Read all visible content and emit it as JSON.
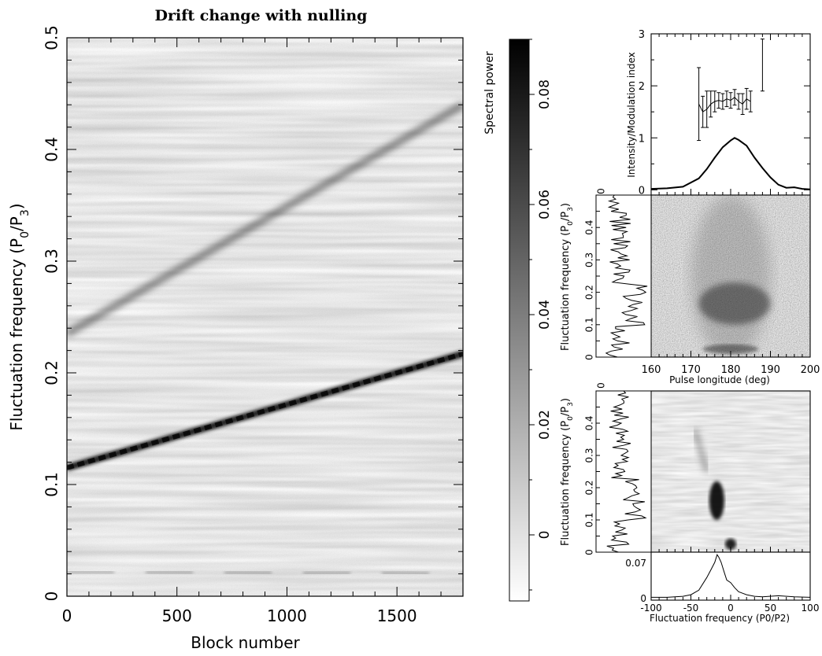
{
  "chart_data": [
    {
      "type": "heatmap",
      "title": "Drift change with nulling",
      "xlabel": "Block number",
      "ylabel": "Fluctuation frequency (P0/P3)",
      "xlim": [
        0,
        1800
      ],
      "ylim": [
        0,
        0.5
      ],
      "xticks": [
        0,
        500,
        1000,
        1500
      ],
      "yticks": [
        0,
        0.1,
        0.2,
        0.3,
        0.4,
        0.5
      ],
      "features": [
        {
          "name": "primary drift track",
          "x": [
            0,
            1800
          ],
          "y": [
            0.115,
            0.217
          ]
        },
        {
          "name": "second harmonic track",
          "x": [
            0,
            1800
          ],
          "y": [
            0.235,
            0.44
          ]
        },
        {
          "name": "low-frequency feature",
          "x": [
            0,
            1800
          ],
          "y": [
            0.022,
            0.02
          ]
        }
      ],
      "colorbar": {
        "label": "Spectral power",
        "range": [
          -0.012,
          0.09
        ],
        "ticks": [
          0,
          0.02,
          0.04,
          0.06,
          0.08
        ]
      },
      "grid": false
    },
    {
      "type": "line",
      "ylabel": "Intensity/Modulation index",
      "xlim": [
        160,
        200
      ],
      "ylim": [
        -0.1,
        3
      ],
      "yticks": [
        0,
        1,
        2,
        3
      ],
      "series": [
        {
          "x": [
            160,
            164,
            168,
            172,
            174,
            176,
            178,
            180,
            181,
            182,
            184,
            186,
            188,
            190,
            192,
            194,
            196,
            198,
            200
          ],
          "y": [
            0.02,
            0.03,
            0.06,
            0.22,
            0.4,
            0.62,
            0.82,
            0.95,
            1.0,
            0.96,
            0.85,
            0.62,
            0.42,
            0.24,
            0.1,
            0.04,
            0.05,
            0.02,
            0.01
          ]
        },
        {
          "x": [
            172,
            173,
            174,
            175,
            176,
            177,
            178,
            179,
            180,
            181,
            182,
            183,
            184,
            185,
            188
          ],
          "y": [
            1.65,
            1.5,
            1.55,
            1.65,
            1.7,
            1.72,
            1.7,
            1.75,
            1.72,
            1.78,
            1.7,
            1.65,
            1.75,
            1.7,
            2.4
          ],
          "err": [
            0.7,
            0.3,
            0.35,
            0.25,
            0.2,
            0.15,
            0.15,
            0.15,
            0.15,
            0.15,
            0.15,
            0.2,
            0.2,
            0.2,
            0.5
          ]
        }
      ]
    },
    {
      "type": "heatmap",
      "xlabel": "Pulse longitude (deg)",
      "ylabel": "Fluctuation frequency (P0/P3)",
      "xlim": [
        160,
        200
      ],
      "ylim": [
        0,
        0.5
      ],
      "xticks": [
        160,
        170,
        180,
        190,
        200
      ],
      "yticks": [
        0,
        0.1,
        0.2,
        0.3,
        0.4
      ],
      "side_spectrum_label": "0",
      "features": [
        {
          "name": "power band",
          "longitude": [
            172,
            190
          ],
          "freq": [
            0.1,
            0.23
          ]
        },
        {
          "name": "low-frequency power",
          "longitude": [
            174,
            188
          ],
          "freq": [
            0.01,
            0.04
          ]
        }
      ]
    },
    {
      "type": "heatmap",
      "xlabel": "Fluctuation frequency (P0/P2)",
      "ylabel": "Fluctuation frequency (P0/P3)",
      "xlim": [
        -100,
        100
      ],
      "ylim": [
        0,
        0.5
      ],
      "xticks": [
        -100,
        -50,
        0,
        50,
        100
      ],
      "yticks": [
        0,
        0.1,
        0.2,
        0.3,
        0.4
      ],
      "side_spectrum_label": "0",
      "features": [
        {
          "name": "drift feature",
          "p2": [
            -25,
            -10
          ],
          "freq": [
            0.1,
            0.22
          ]
        },
        {
          "name": "low-frequency blob",
          "p2": [
            -5,
            5
          ],
          "freq": [
            0.01,
            0.04
          ]
        },
        {
          "name": "faint harmonic trail",
          "p2": [
            -45,
            -30
          ],
          "freq": [
            0.25,
            0.38
          ]
        }
      ]
    },
    {
      "type": "line",
      "xlim": [
        -100,
        100
      ],
      "ylim": [
        0,
        0.09
      ],
      "yticks": [
        0,
        0.07
      ],
      "series": [
        {
          "x": [
            -100,
            -80,
            -60,
            -50,
            -40,
            -30,
            -25,
            -20,
            -17,
            -15,
            -12,
            -8,
            -5,
            0,
            5,
            10,
            15,
            20,
            30,
            40,
            60,
            80,
            100
          ],
          "y": [
            0.001,
            0.001,
            0.003,
            0.006,
            0.015,
            0.04,
            0.055,
            0.07,
            0.085,
            0.08,
            0.07,
            0.05,
            0.035,
            0.03,
            0.02,
            0.012,
            0.009,
            0.006,
            0.003,
            0.002,
            0.004,
            0.002,
            0.001
          ]
        }
      ]
    }
  ]
}
